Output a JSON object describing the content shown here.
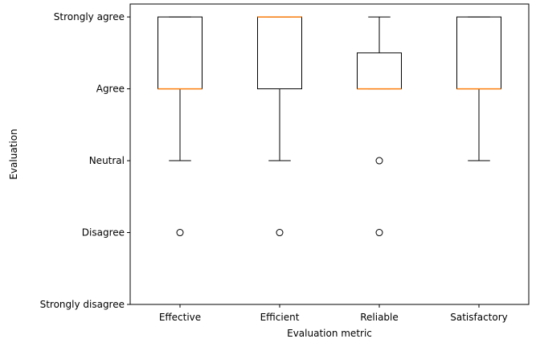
{
  "chart_data": {
    "type": "boxplot",
    "xlabel": "Evaluation metric",
    "ylabel": "Evaluation",
    "ylim": [
      1,
      5
    ],
    "y_ticks": [
      {
        "value": 1,
        "label": "Strongly disagree"
      },
      {
        "value": 2,
        "label": "Disagree"
      },
      {
        "value": 3,
        "label": "Neutral"
      },
      {
        "value": 4,
        "label": "Agree"
      },
      {
        "value": 5,
        "label": "Strongly agree"
      }
    ],
    "categories": [
      "Effective",
      "Efficient",
      "Reliable",
      "Satisfactory"
    ],
    "boxes": [
      {
        "category": "Effective",
        "whisker_low": 3,
        "q1": 4,
        "median": 4,
        "q3": 5,
        "whisker_high": 5,
        "outliers": [
          2
        ]
      },
      {
        "category": "Efficient",
        "whisker_low": 3,
        "q1": 4,
        "median": 5,
        "q3": 5,
        "whisker_high": 5,
        "outliers": [
          2
        ]
      },
      {
        "category": "Reliable",
        "whisker_low": 4,
        "q1": 4,
        "median": 4,
        "q3": 4.5,
        "whisker_high": 5,
        "outliers": [
          3,
          2
        ]
      },
      {
        "category": "Satisfactory",
        "whisker_low": 3,
        "q1": 4,
        "median": 4,
        "q3": 5,
        "whisker_high": 5,
        "outliers": []
      }
    ],
    "grid": false,
    "box_color": "#000000",
    "median_color": "#ff7f0e",
    "background_color": "#ffffff"
  }
}
